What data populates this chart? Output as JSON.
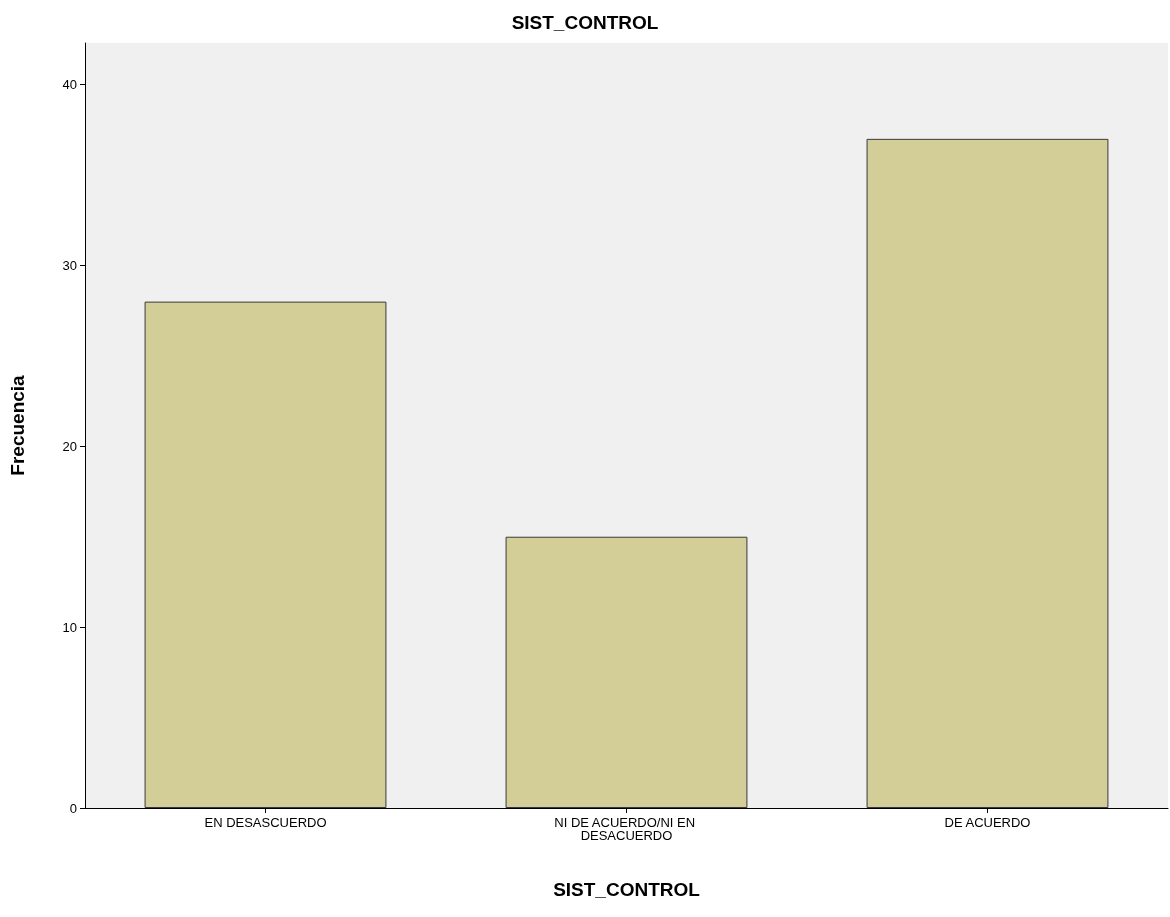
{
  "chart_data": {
    "type": "bar",
    "title": "SIST_CONTROL",
    "xlabel": "SIST_CONTROL",
    "ylabel": "Frecuencia",
    "categories": [
      "EN DESASCUERDO",
      "NI DE ACUERDO/NI EN DESACUERDO",
      "DE ACUERDO"
    ],
    "values": [
      28,
      15,
      37
    ],
    "color": "#d3ce97",
    "ylim": [
      0,
      42.3
    ],
    "yticks": [
      0,
      10,
      20,
      30,
      40
    ],
    "grid": false
  }
}
